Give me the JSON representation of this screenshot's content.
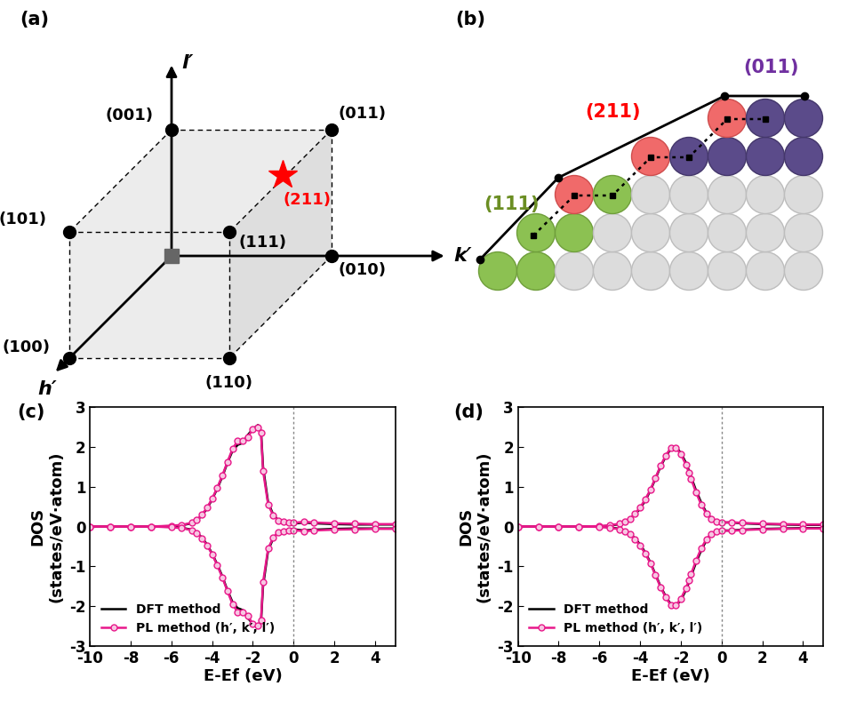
{
  "panel_labels": [
    "(a)",
    "(b)",
    "(c)",
    "(d)"
  ],
  "diagram_a": {
    "axes": {
      "l": "l′",
      "k": "k′",
      "h": "h′"
    },
    "vertices": [
      "(001)",
      "(011)",
      "(101)",
      "(111)",
      "(010)",
      "(100)",
      "(110)"
    ],
    "highlight": {
      "label": "(211)",
      "color": "#ff0000"
    }
  },
  "diagram_b": {
    "facets": [
      {
        "label": "(111)",
        "color": "#6b8e23"
      },
      {
        "label": "(211)",
        "color": "#ff0000"
      },
      {
        "label": "(011)",
        "color": "#7030a0"
      }
    ]
  },
  "chart_data": [
    {
      "type": "line",
      "xlabel": "E-Ef (eV)",
      "ylabel": "DOS\n(states/eV·atom)",
      "x": [
        -10,
        -9,
        -8,
        -7,
        -6,
        -5.5,
        -5,
        -4.75,
        -4.5,
        -4.25,
        -4,
        -3.75,
        -3.5,
        -3.25,
        -3,
        -2.75,
        -2.5,
        -2.25,
        -2,
        -1.75,
        -1.6,
        -1.5,
        -1.25,
        -1,
        -0.75,
        -0.5,
        -0.25,
        0,
        0.5,
        1,
        2,
        3,
        4,
        5
      ],
      "series": [
        {
          "name": "DFT method",
          "color": "#000000",
          "marker": "none",
          "values": [
            0,
            0,
            0,
            0,
            0.01,
            0.03,
            0.08,
            0.15,
            0.28,
            0.45,
            0.68,
            0.95,
            1.25,
            1.6,
            1.9,
            2.05,
            2.1,
            2.3,
            2.45,
            2.55,
            2.4,
            1.5,
            0.6,
            0.3,
            0.15,
            0.1,
            0.08,
            0.07,
            0.1,
            0.08,
            0.06,
            0.05,
            0.05,
            0.05
          ],
          "spin_down": [
            0,
            0,
            0,
            0,
            -0.01,
            -0.03,
            -0.08,
            -0.15,
            -0.28,
            -0.45,
            -0.68,
            -0.95,
            -1.25,
            -1.6,
            -1.9,
            -2.05,
            -2.1,
            -2.3,
            -2.45,
            -2.55,
            -2.4,
            -1.5,
            -0.6,
            -0.3,
            -0.15,
            -0.1,
            -0.08,
            -0.07,
            -0.1,
            -0.08,
            -0.06,
            -0.05,
            -0.05,
            -0.05
          ]
        },
        {
          "name": "PL method (h′, k′, l′)",
          "color": "#e8188a",
          "marker": "o",
          "values": [
            0,
            0,
            0,
            0,
            0.02,
            0.04,
            0.09,
            0.16,
            0.3,
            0.47,
            0.7,
            0.97,
            1.28,
            1.62,
            1.95,
            2.15,
            2.15,
            2.25,
            2.45,
            2.5,
            2.35,
            1.4,
            0.55,
            0.28,
            0.14,
            0.12,
            0.1,
            0.09,
            0.12,
            0.1,
            0.08,
            0.07,
            0.06,
            0.06
          ],
          "spin_down": [
            0,
            0,
            0,
            0,
            -0.02,
            -0.04,
            -0.09,
            -0.16,
            -0.3,
            -0.47,
            -0.7,
            -0.97,
            -1.28,
            -1.62,
            -1.95,
            -2.15,
            -2.15,
            -2.25,
            -2.45,
            -2.5,
            -2.35,
            -1.4,
            -0.55,
            -0.28,
            -0.14,
            -0.12,
            -0.1,
            -0.09,
            -0.12,
            -0.1,
            -0.08,
            -0.07,
            -0.06,
            -0.06
          ]
        }
      ],
      "xlim": [
        -10,
        5
      ],
      "xticks": [
        -10,
        -8,
        -6,
        -4,
        -2,
        0,
        2,
        4
      ],
      "ylim": [
        -3,
        3
      ],
      "yticks": [
        -3,
        -2,
        -1,
        0,
        1,
        2,
        3
      ],
      "legend": "lower left",
      "vline": 0
    },
    {
      "type": "line",
      "xlabel": "E-Ef (eV)",
      "ylabel": "DOS\n(states/eV·atom)",
      "x": [
        -10,
        -9,
        -8,
        -7,
        -6,
        -5.5,
        -5,
        -4.75,
        -4.5,
        -4.25,
        -4,
        -3.75,
        -3.5,
        -3.25,
        -3,
        -2.75,
        -2.5,
        -2.25,
        -2,
        -1.75,
        -1.6,
        -1.5,
        -1.25,
        -1,
        -0.75,
        -0.5,
        -0.25,
        0,
        0.5,
        1,
        2,
        3,
        4,
        5
      ],
      "series": [
        {
          "name": "DFT method",
          "color": "#000000",
          "marker": "none",
          "values": [
            0,
            0,
            0,
            0,
            0,
            0.02,
            0.06,
            0.1,
            0.18,
            0.3,
            0.45,
            0.65,
            0.9,
            1.2,
            1.5,
            1.75,
            1.95,
            2.0,
            1.85,
            1.6,
            1.4,
            1.25,
            0.9,
            0.6,
            0.35,
            0.2,
            0.12,
            0.1,
            0.1,
            0.08,
            0.06,
            0.05,
            0.04,
            0.04
          ],
          "spin_down": [
            0,
            0,
            0,
            0,
            0,
            -0.02,
            -0.06,
            -0.1,
            -0.18,
            -0.3,
            -0.45,
            -0.65,
            -0.9,
            -1.2,
            -1.5,
            -1.75,
            -1.95,
            -2.0,
            -1.85,
            -1.6,
            -1.4,
            -1.25,
            -0.9,
            -0.6,
            -0.35,
            -0.2,
            -0.12,
            -0.1,
            -0.1,
            -0.08,
            -0.06,
            -0.05,
            -0.04,
            -0.04
          ]
        },
        {
          "name": "PL method (h′, k′, l′)",
          "color": "#e8188a",
          "marker": "o",
          "values": [
            0,
            0,
            0,
            0,
            0.01,
            0.03,
            0.07,
            0.12,
            0.2,
            0.32,
            0.48,
            0.68,
            0.92,
            1.22,
            1.52,
            1.78,
            1.97,
            1.98,
            1.82,
            1.55,
            1.35,
            1.2,
            0.85,
            0.55,
            0.32,
            0.18,
            0.12,
            0.1,
            0.11,
            0.09,
            0.07,
            0.06,
            0.05,
            0.05
          ],
          "spin_down": [
            0,
            0,
            0,
            0,
            -0.01,
            -0.03,
            -0.07,
            -0.12,
            -0.2,
            -0.32,
            -0.48,
            -0.68,
            -0.92,
            -1.22,
            -1.52,
            -1.78,
            -1.97,
            -1.98,
            -1.82,
            -1.55,
            -1.35,
            -1.2,
            -0.85,
            -0.55,
            -0.32,
            -0.18,
            -0.12,
            -0.1,
            -0.11,
            -0.09,
            -0.07,
            -0.06,
            -0.05,
            -0.05
          ]
        }
      ],
      "xlim": [
        -10,
        5
      ],
      "xticks": [
        -10,
        -8,
        -6,
        -4,
        -2,
        0,
        2,
        4
      ],
      "ylim": [
        -3,
        3
      ],
      "yticks": [
        -3,
        -2,
        -1,
        0,
        1,
        2,
        3
      ],
      "legend": "lower left",
      "vline": 0
    }
  ]
}
